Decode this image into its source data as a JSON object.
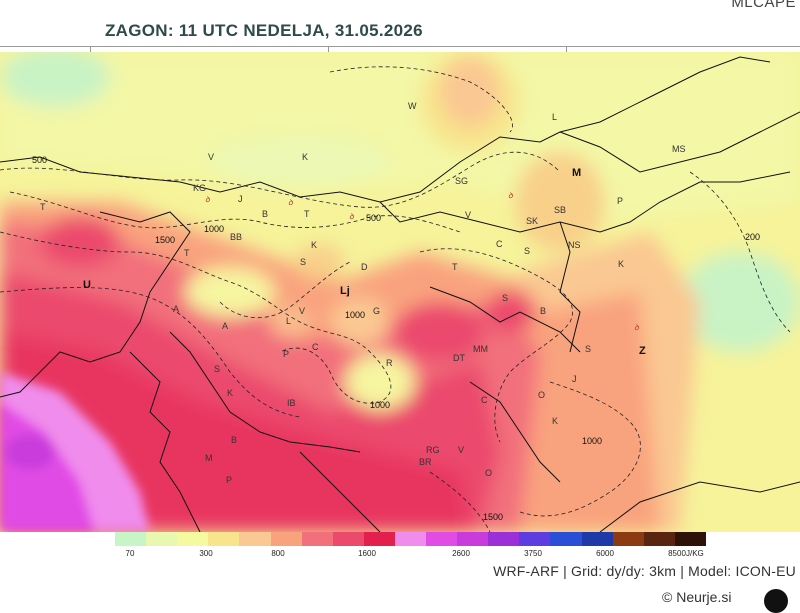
{
  "header": {
    "title": "ZAGON: 11 UTC  NEDELJA, 31.05.2026",
    "product": "MLCAPE"
  },
  "map": {
    "cities": [
      {
        "key": "W",
        "text": "W"
      },
      {
        "key": "L",
        "text": "L"
      },
      {
        "key": "V",
        "text": "V"
      },
      {
        "key": "K",
        "text": "K"
      },
      {
        "key": "MS",
        "text": "MS"
      },
      {
        "key": "M",
        "text": "M"
      },
      {
        "key": "KG",
        "text": "KG"
      },
      {
        "key": "SG",
        "text": "SG"
      },
      {
        "key": "P1",
        "text": "P"
      },
      {
        "key": "J",
        "text": "J"
      },
      {
        "key": "B",
        "text": "B"
      },
      {
        "key": "T1",
        "text": "T"
      },
      {
        "key": "SK",
        "text": "SK"
      },
      {
        "key": "SB",
        "text": "SB"
      },
      {
        "key": "T2",
        "text": "T"
      },
      {
        "key": "BB",
        "text": "BB"
      },
      {
        "key": "V2",
        "text": "V"
      },
      {
        "key": "C1",
        "text": "C"
      },
      {
        "key": "S1",
        "text": "S"
      },
      {
        "key": "NS",
        "text": "NS"
      },
      {
        "key": "K2",
        "text": "K"
      },
      {
        "key": "S2",
        "text": "S"
      },
      {
        "key": "D",
        "text": "D"
      },
      {
        "key": "T3",
        "text": "T"
      },
      {
        "key": "U",
        "text": "U"
      },
      {
        "key": "Lj",
        "text": "Lj"
      },
      {
        "key": "S3",
        "text": "S"
      },
      {
        "key": "K3",
        "text": "K"
      },
      {
        "key": "B2",
        "text": "B"
      },
      {
        "key": "Z",
        "text": "Z"
      },
      {
        "key": "L2",
        "text": "L"
      },
      {
        "key": "V3",
        "text": "V"
      },
      {
        "key": "A",
        "text": "A"
      },
      {
        "key": "C2",
        "text": "C"
      },
      {
        "key": "G",
        "text": "G"
      },
      {
        "key": "MM",
        "text": "MM"
      },
      {
        "key": "DT",
        "text": "DT"
      },
      {
        "key": "P2",
        "text": "P"
      },
      {
        "key": "S4",
        "text": "S"
      },
      {
        "key": "R",
        "text": "R"
      },
      {
        "key": "O1",
        "text": "O"
      },
      {
        "key": "J2",
        "text": "J"
      },
      {
        "key": "K4",
        "text": "K"
      },
      {
        "key": "C3",
        "text": "C"
      },
      {
        "key": "K5",
        "text": "K"
      },
      {
        "key": "IB",
        "text": "IB"
      },
      {
        "key": "B3",
        "text": "B"
      },
      {
        "key": "M2",
        "text": "M"
      },
      {
        "key": "RG",
        "text": "RG"
      },
      {
        "key": "BR",
        "text": "BR"
      },
      {
        "key": "O2",
        "text": "O"
      },
      {
        "key": "P3",
        "text": "P"
      },
      {
        "key": "V4",
        "text": "V"
      },
      {
        "key": "T4",
        "text": "T"
      },
      {
        "key": "S5",
        "text": "S"
      },
      {
        "key": "A2",
        "text": "A"
      }
    ],
    "contour_labels": [
      {
        "key": "c500a",
        "text": "500"
      },
      {
        "key": "c500b",
        "text": "500"
      },
      {
        "key": "c1000a",
        "text": "1000"
      },
      {
        "key": "c1500a",
        "text": "1500"
      },
      {
        "key": "c1000b",
        "text": "1000"
      },
      {
        "key": "c1000c",
        "text": "1000"
      },
      {
        "key": "c1000d",
        "text": "1000"
      },
      {
        "key": "c200",
        "text": "200"
      },
      {
        "key": "c1500b",
        "text": "1500"
      }
    ]
  },
  "legend": {
    "labels": [
      "70",
      "300",
      "800",
      "1600",
      "2600",
      "3750",
      "6000",
      "8500"
    ],
    "unit": "J/KG",
    "colors": [
      "#ffffff",
      "#c8f5c8",
      "#e9f8b0",
      "#f5f9a0",
      "#f8e48c",
      "#fac892",
      "#f9a37e",
      "#f2707b",
      "#eb4a6d",
      "#e31f4d",
      "#f08cec",
      "#e14ce5",
      "#c93cdc",
      "#9b2fd8",
      "#5d3ce0",
      "#2a4fd6",
      "#1f3aa8",
      "#8b3a12",
      "#5a2510",
      "#2d1208"
    ]
  },
  "footer": {
    "model_info": "WRF-ARF | Grid: dy/dy: 3km | Model: ICON-EU",
    "copyright": "© Neurje.si"
  }
}
